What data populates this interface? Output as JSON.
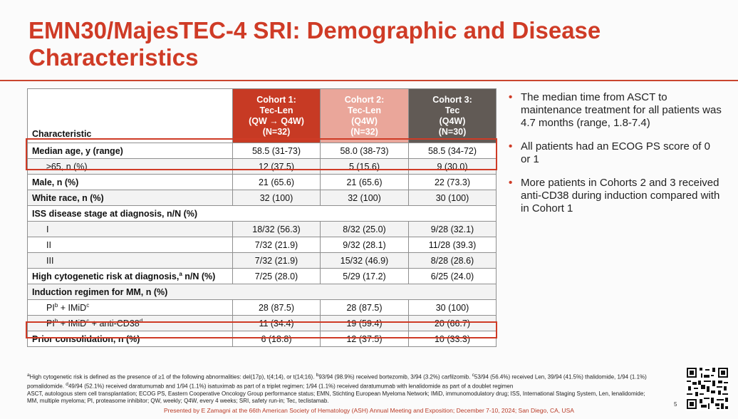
{
  "title": "EMN30/MajesTEC-4 SRI: Demographic and Disease Characteristics",
  "table": {
    "header": {
      "characteristic": "Characteristic",
      "cohort1": [
        "Cohort 1:",
        "Tec-Len",
        "(QW → Q4W)",
        "(N=32)"
      ],
      "cohort2": [
        "Cohort 2:",
        "Tec-Len",
        "(Q4W)",
        "(N=32)"
      ],
      "cohort3": [
        "Cohort 3:",
        "Tec",
        "(Q4W)",
        "(N=30)"
      ]
    },
    "rows": [
      {
        "label": "Median age, y (range)",
        "c1": "58.5 (31-73)",
        "c2": "58.0 (38-73)",
        "c3": "58.5 (34-72)"
      },
      {
        "label": "≥65, n (%)",
        "c1": "12 (37.5)",
        "c2": "5 (15.6)",
        "c3": "9 (30.0)"
      },
      {
        "label": "Male, n (%)",
        "c1": "21 (65.6)",
        "c2": "21 (65.6)",
        "c3": "22 (73.3)"
      },
      {
        "label": "White race, n (%)",
        "c1": "32 (100)",
        "c2": "32 (100)",
        "c3": "30 (100)"
      },
      {
        "label": "ISS disease stage at diagnosis, n/N (%)"
      },
      {
        "label": "I",
        "c1": "18/32 (56.3)",
        "c2": "8/32 (25.0)",
        "c3": "9/28 (32.1)"
      },
      {
        "label": "II",
        "c1": "7/32 (21.9)",
        "c2": "9/32 (28.1)",
        "c3": "11/28 (39.3)"
      },
      {
        "label": "III",
        "c1": "7/32 (21.9)",
        "c2": "15/32 (46.9)",
        "c3": "8/28 (28.6)"
      },
      {
        "label": "High cytogenetic risk at diagnosis,",
        "sup": "a",
        "label_suffix": " n/N (%)",
        "c1": "7/25 (28.0)",
        "c2": "5/29 (17.2)",
        "c3": "6/25 (24.0)"
      },
      {
        "label": "Induction regimen for MM, n (%)"
      },
      {
        "label": "PI",
        "sup1": "b",
        "label_mid": " + IMiD",
        "sup2": "c",
        "c1": "28 (87.5)",
        "c2": "28 (87.5)",
        "c3": "30 (100)"
      },
      {
        "label": "PI",
        "sup1": "b",
        "label_mid": " + IMiD",
        "sup2": "c",
        "label_end": " + anti-CD38",
        "sup3": "d",
        "c1": "11 (34.4)",
        "c2": "19 (59.4)",
        "c3": "20 (66.7)"
      },
      {
        "label": "Prior consolidation, n (%)",
        "c1": "6 (18.8)",
        "c2": "12 (37.5)",
        "c3": "10 (33.3)"
      }
    ]
  },
  "bullets": [
    "The median time from ASCT to maintenance treatment for all patients was 4.7 months (range, 1.8-7.4)",
    "All patients had an ECOG PS score of 0 or 1",
    "More patients in Cohorts 2 and 3 received anti-CD38 during induction compared with in Cohort 1"
  ],
  "footnotes": {
    "a_sup": "a",
    "a": "High cytogenetic risk is defined as the presence of ≥1 of the following abnormalities: del(17p), t(4;14), or t(14;16). ",
    "b_sup": "b",
    "b": "93/94 (98.9%) received bortezomib, 3/94 (3.2%) carfilzomib. ",
    "c_sup": "c",
    "c": "53/94 (56.4%) received Len, 39/94 (41.5%) thalidomide, 1/94 (1.1%) pomalidomide. ",
    "d_sup": "d",
    "d": "49/94 (52.1%) received daratumumab and 1/94 (1.1%) isatuximab as part of a triplet regimen; 1/94 (1.1%) received daratumumab with lenalidomide as part of a doublet regimen",
    "abbrev": "ASCT, autologous stem cell transplantation; ECOG PS, Eastern Cooperative Oncology Group performance status; EMN, Stichting European Myeloma Network; IMiD, immunomodulatory drug; ISS, International Staging System, Len, lenalidomide; MM, multiple myeloma; PI, proteasome inhibitor; QW, weekly; Q4W, every 4 weeks; SRI, safety run-in; Tec, teclistamab."
  },
  "presented_by": "Presented by E Zamagni at the 66th American Society of Hematology (ASH) Annual Meeting and Exposition; December 7-10, 2024; San Diego, CA, USA",
  "page_number": "5",
  "colors": {
    "accent": "#cf3b26",
    "cohort1": "#c73a24",
    "cohort2": "#eaa69a",
    "cohort3": "#615a55"
  },
  "icons": {
    "qr": "qr-code-icon"
  }
}
